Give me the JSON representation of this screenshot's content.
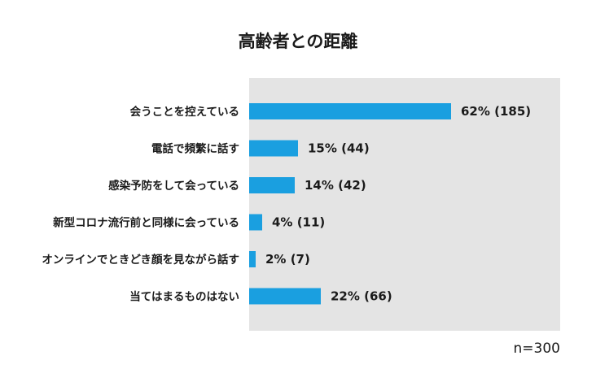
{
  "chart_data": {
    "type": "bar",
    "orientation": "horizontal",
    "title": "高齢者との距離",
    "categories": [
      "会うことを控えている",
      "電話で頻繁に話す",
      "感染予防をして会っている",
      "新型コロナ流行前と同様に会っている",
      "オンラインでときどき顔を見ながら話す",
      "当てはまるものはない"
    ],
    "values": [
      62,
      15,
      14,
      4,
      2,
      22
    ],
    "value_labels": [
      "62% (185)",
      "15% (44)",
      "14% (42)",
      "4% (11)",
      "2% (7)",
      "22% (66)"
    ],
    "unit": "%",
    "xlim": [
      0,
      100
    ],
    "grid": false,
    "legend": "none",
    "colors": {
      "bar": "#1a9fe0",
      "plot_background": "#e4e4e4",
      "text": "#1a1a1a"
    },
    "note": "n=300"
  }
}
